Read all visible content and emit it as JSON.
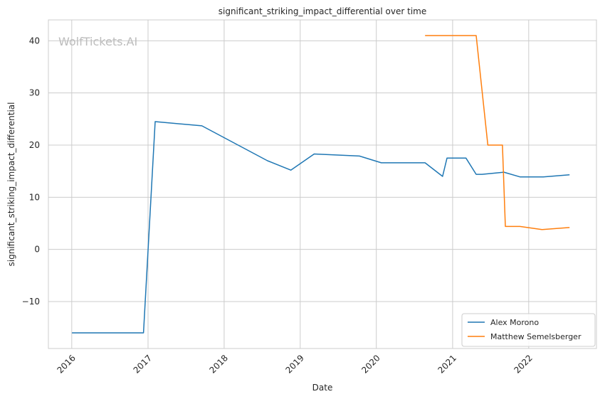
{
  "chart_data": {
    "type": "line",
    "title": "significant_striking_impact_differential over time",
    "xlabel": "Date",
    "ylabel": "significant_striking_impact_differential",
    "watermark": "WolfTickets.AI",
    "x_ticks": [
      "2016",
      "2017",
      "2018",
      "2019",
      "2020",
      "2021",
      "2022"
    ],
    "y_ticks": [
      -10,
      0,
      10,
      20,
      30,
      40
    ],
    "xlim": [
      "2015-09-11",
      "2022-11-22"
    ],
    "ylim": [
      -19,
      44
    ],
    "grid": true,
    "legend_position": "lower right",
    "series": [
      {
        "name": "Alex Morono",
        "color": "#1f77b4",
        "points": [
          {
            "x": "2016-01-02",
            "y": -16
          },
          {
            "x": "2016-12-10",
            "y": -16
          },
          {
            "x": "2017-02-04",
            "y": 24.5
          },
          {
            "x": "2017-09-16",
            "y": 23.7
          },
          {
            "x": "2018-07-28",
            "y": 17
          },
          {
            "x": "2018-11-17",
            "y": 15.2
          },
          {
            "x": "2019-03-09",
            "y": 18.3
          },
          {
            "x": "2019-10-12",
            "y": 17.9
          },
          {
            "x": "2020-01-25",
            "y": 16.6
          },
          {
            "x": "2020-08-22",
            "y": 16.6
          },
          {
            "x": "2020-11-14",
            "y": 14.0
          },
          {
            "x": "2020-12-05",
            "y": 17.5
          },
          {
            "x": "2021-03-06",
            "y": 17.5
          },
          {
            "x": "2021-04-24",
            "y": 14.4
          },
          {
            "x": "2021-05-22",
            "y": 14.4
          },
          {
            "x": "2021-09-04",
            "y": 14.8
          },
          {
            "x": "2021-11-20",
            "y": 13.9
          },
          {
            "x": "2022-03-12",
            "y": 13.9
          },
          {
            "x": "2022-07-16",
            "y": 14.3
          }
        ]
      },
      {
        "name": "Matthew Semelsberger",
        "color": "#ff7f0e",
        "points": [
          {
            "x": "2020-08-22",
            "y": 41
          },
          {
            "x": "2021-04-24",
            "y": 41
          },
          {
            "x": "2021-06-19",
            "y": 20
          },
          {
            "x": "2021-08-28",
            "y": 20
          },
          {
            "x": "2021-09-11",
            "y": 4.4
          },
          {
            "x": "2021-11-20",
            "y": 4.4
          },
          {
            "x": "2022-03-05",
            "y": 3.8
          },
          {
            "x": "2022-07-16",
            "y": 4.2
          }
        ]
      }
    ]
  }
}
